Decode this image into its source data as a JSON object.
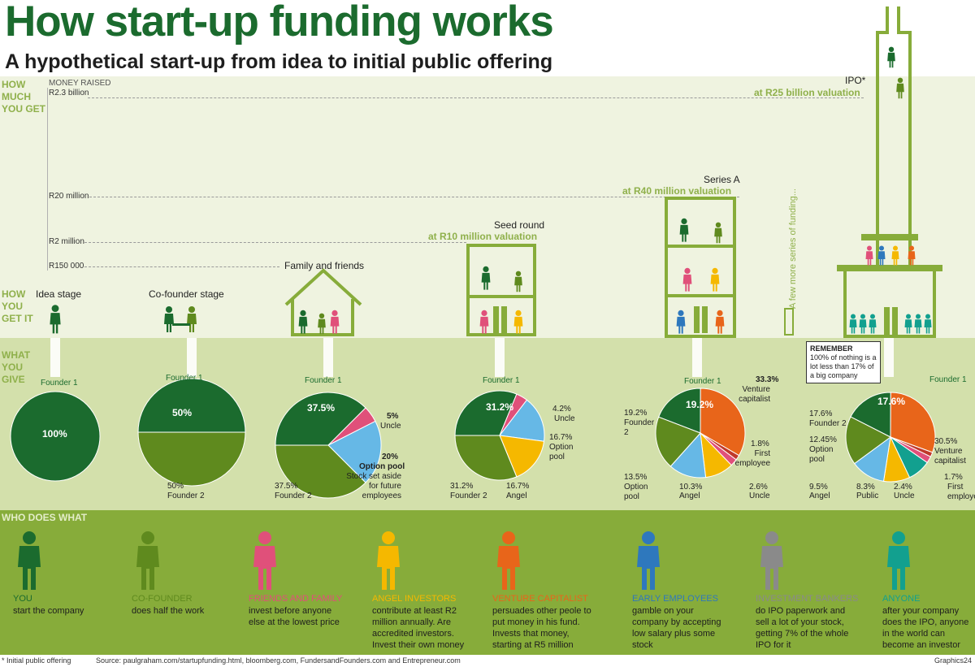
{
  "title": "How start-up funding works",
  "subtitle": "A hypothetical start-up from idea to initial public offering",
  "sections": {
    "how_much": "HOW MUCH YOU GET",
    "how_get": "HOW YOU GET IT",
    "what_give": "WHAT YOU GIVE",
    "who_does": "WHO DOES WHAT"
  },
  "money_raised": {
    "header": "MONEY RAISED",
    "levels": [
      "R2.3 billion",
      "R20 million",
      "R2 million",
      "R150 000"
    ]
  },
  "stages": {
    "idea": "Idea stage",
    "cofounder": "Co-founder stage",
    "family": "Family and friends",
    "seed": "Seed round",
    "seed_val": "at R10 million valuation",
    "seriesA": "Series A",
    "seriesA_val": "at R40 million valuation",
    "few_more": "A few more series of funding...",
    "ipo": "IPO*",
    "ipo_val": "at R25 billion valuation"
  },
  "remember": {
    "head": "REMEMBER",
    "text": "100% of nothing is a lot less than 17% of a big company"
  },
  "chart_data": [
    {
      "type": "pie",
      "title": "Idea stage",
      "slices": [
        {
          "label": "Founder 1",
          "value": 100
        }
      ]
    },
    {
      "type": "pie",
      "title": "Co-founder stage",
      "slices": [
        {
          "label": "Founder 1",
          "value": 50
        },
        {
          "label": "Founder 2",
          "value": 50
        }
      ]
    },
    {
      "type": "pie",
      "title": "Family and friends",
      "slices": [
        {
          "label": "Founder 1",
          "value": 37.5
        },
        {
          "label": "Uncle",
          "value": 5
        },
        {
          "label": "Option pool",
          "value": 20
        },
        {
          "label": "Founder 2",
          "value": 37.5
        }
      ]
    },
    {
      "type": "pie",
      "title": "Seed round",
      "slices": [
        {
          "label": "Founder 1",
          "value": 31.2
        },
        {
          "label": "Uncle",
          "value": 4.2
        },
        {
          "label": "Option pool",
          "value": 16.7
        },
        {
          "label": "Angel",
          "value": 16.7
        },
        {
          "label": "Founder 2",
          "value": 31.2
        }
      ]
    },
    {
      "type": "pie",
      "title": "Series A",
      "slices": [
        {
          "label": "Founder 1",
          "value": 19.2
        },
        {
          "label": "Venture capitalist",
          "value": 33.3
        },
        {
          "label": "First employee",
          "value": 1.8
        },
        {
          "label": "Uncle",
          "value": 2.6
        },
        {
          "label": "Angel",
          "value": 10.3
        },
        {
          "label": "Option pool",
          "value": 13.5
        },
        {
          "label": "Founder 2",
          "value": 19.2
        }
      ]
    },
    {
      "type": "pie",
      "title": "IPO",
      "slices": [
        {
          "label": "Founder 1",
          "value": 17.6
        },
        {
          "label": "Venture capitalist",
          "value": 30.5
        },
        {
          "label": "First employee",
          "value": 1.7
        },
        {
          "label": "Uncle",
          "value": 2.4
        },
        {
          "label": "Public",
          "value": 8.3
        },
        {
          "label": "Angel",
          "value": 9.5
        },
        {
          "label": "Option pool",
          "value": 12.45
        },
        {
          "label": "Founder 2",
          "value": 17.6
        }
      ]
    }
  ],
  "pie_labels": {
    "p1": {
      "founder1": "Founder 1",
      "v": "100%"
    },
    "p2": {
      "founder1": "Founder 1",
      "v1": "50%",
      "v2": "50%",
      "founder2": "Founder 2"
    },
    "p3": {
      "founder1": "Founder 1",
      "v1": "37.5%",
      "uncle_v": "5%",
      "uncle": "Uncle",
      "opt_v": "20%",
      "opt": "Option pool",
      "opt_desc": "Stock set aside for future employees",
      "f2_v": "37.5%",
      "founder2": "Founder 2"
    },
    "p4": {
      "founder1": "Founder 1",
      "v1": "31.2%",
      "uncle_v": "4.2%",
      "uncle": "Uncle",
      "opt_v": "16.7%",
      "opt": "Option pool",
      "angel_v": "16.7%",
      "angel": "Angel",
      "f2_v": "31.2%",
      "founder2": "Founder 2"
    },
    "p5": {
      "founder1": "Founder 1",
      "v1": "19.2%",
      "vc_v": "33.3%",
      "vc": "Venture capitalist",
      "fe_v": "1.8%",
      "fe": "First employee",
      "uncle_v": "2.6%",
      "uncle": "Uncle",
      "angel_v": "10.3%",
      "angel": "Angel",
      "opt_v": "13.5%",
      "opt": "Option pool",
      "f2_v": "19.2%",
      "founder2": "Founder 2"
    },
    "p6": {
      "founder1": "Founder 1",
      "v1": "17.6%",
      "vc_v": "30.5%",
      "vc": "Venture capitalist",
      "fe_v": "1.7%",
      "fe": "First employee",
      "uncle_v": "2.4%",
      "uncle": "Uncle",
      "pub_v": "8.3%",
      "pub": "Public",
      "angel_v": "9.5%",
      "angel": "Angel",
      "opt_v": "12.45%",
      "opt": "Option pool",
      "f2_v": "17.6%",
      "founder2": "Founder 2"
    }
  },
  "who": [
    {
      "title": "YOU",
      "desc": "start the company",
      "color": "#1b6b2e"
    },
    {
      "title": "CO-FOUNDER",
      "desc": "does half the work",
      "color": "#5f8a1e"
    },
    {
      "title": "FRIENDS AND FAMILY",
      "desc": "invest before anyone else at the lowest price",
      "color": "#e0507a"
    },
    {
      "title": "ANGEL INVESTORS",
      "desc": "contribute at least R2 million annually. Are accredited investors. Invest their own money",
      "color": "#f5b800"
    },
    {
      "title": "VENTURE CAPITALIST",
      "desc": "persuades other peole to put money in his fund. Invests that money, starting at R5 million",
      "color": "#e8651a"
    },
    {
      "title": "EARLY EMPLOYEES",
      "desc": "gamble on your company by accepting low salary plus some stock",
      "color": "#2e78bd"
    },
    {
      "title": "INVESTMENT BANKERS",
      "desc": "do IPO paperwork and sell a lot of your stock, getting 7% of the whole IPO for it",
      "color": "#8a8a8a"
    },
    {
      "title": "ANYONE",
      "desc": "after your company does the IPO, anyone in the world can become an investor",
      "color": "#12a08f"
    }
  ],
  "footnote": "* Initial public offering",
  "source": "Source: paulgraham.com/startupfunding.html, bloomberg.com, FundersandFounders.com and Entrepreneur.com",
  "credit": "Graphics24",
  "colors": {
    "dark_green": "#1b6b2e",
    "mid_green": "#5f8a1e",
    "olive": "#87ac3a",
    "light": "#d3e0ab",
    "pink": "#e0507a",
    "blue_sky": "#66b8e6",
    "yellow": "#f5b800",
    "orange": "#e8651a",
    "red": "#c0392b",
    "purple": "#7b4e9e",
    "teal": "#12a08f",
    "navy": "#2e3a8c"
  }
}
